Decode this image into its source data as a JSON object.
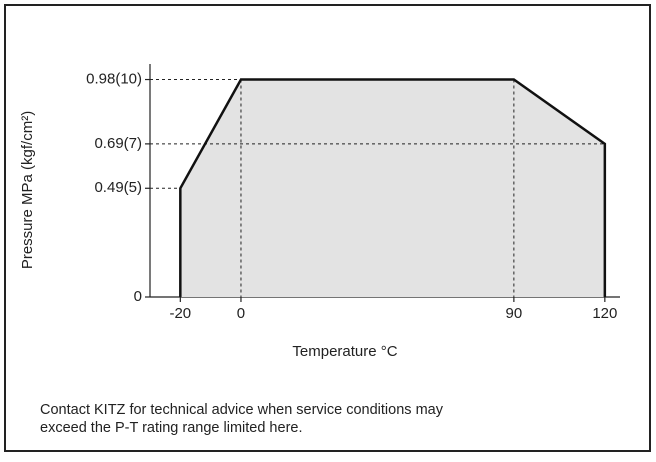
{
  "chart_data": {
    "type": "area",
    "x_label": "Temperature °C",
    "y_label": "Pressure MPa (kgf/cm²)",
    "x": [
      -20,
      -20,
      0,
      90,
      120,
      120
    ],
    "values": [
      0,
      0.49,
      0.98,
      0.98,
      0.69,
      0
    ],
    "color": "#e3e3e3",
    "xlim": [
      -30,
      125
    ],
    "ylim": [
      0,
      1.05
    ],
    "xticks": [
      -20,
      0,
      90,
      120
    ],
    "yticks": [
      0,
      {
        "value": 0.49,
        "label": "0.49(5)"
      },
      {
        "value": 0.69,
        "label": "0.69(7)"
      },
      {
        "value": 0.98,
        "label": "0.98(10)"
      }
    ],
    "note": [
      "Contact KITZ for technical advice when service conditions may",
      "exceed the P-T rating range limited here."
    ]
  }
}
